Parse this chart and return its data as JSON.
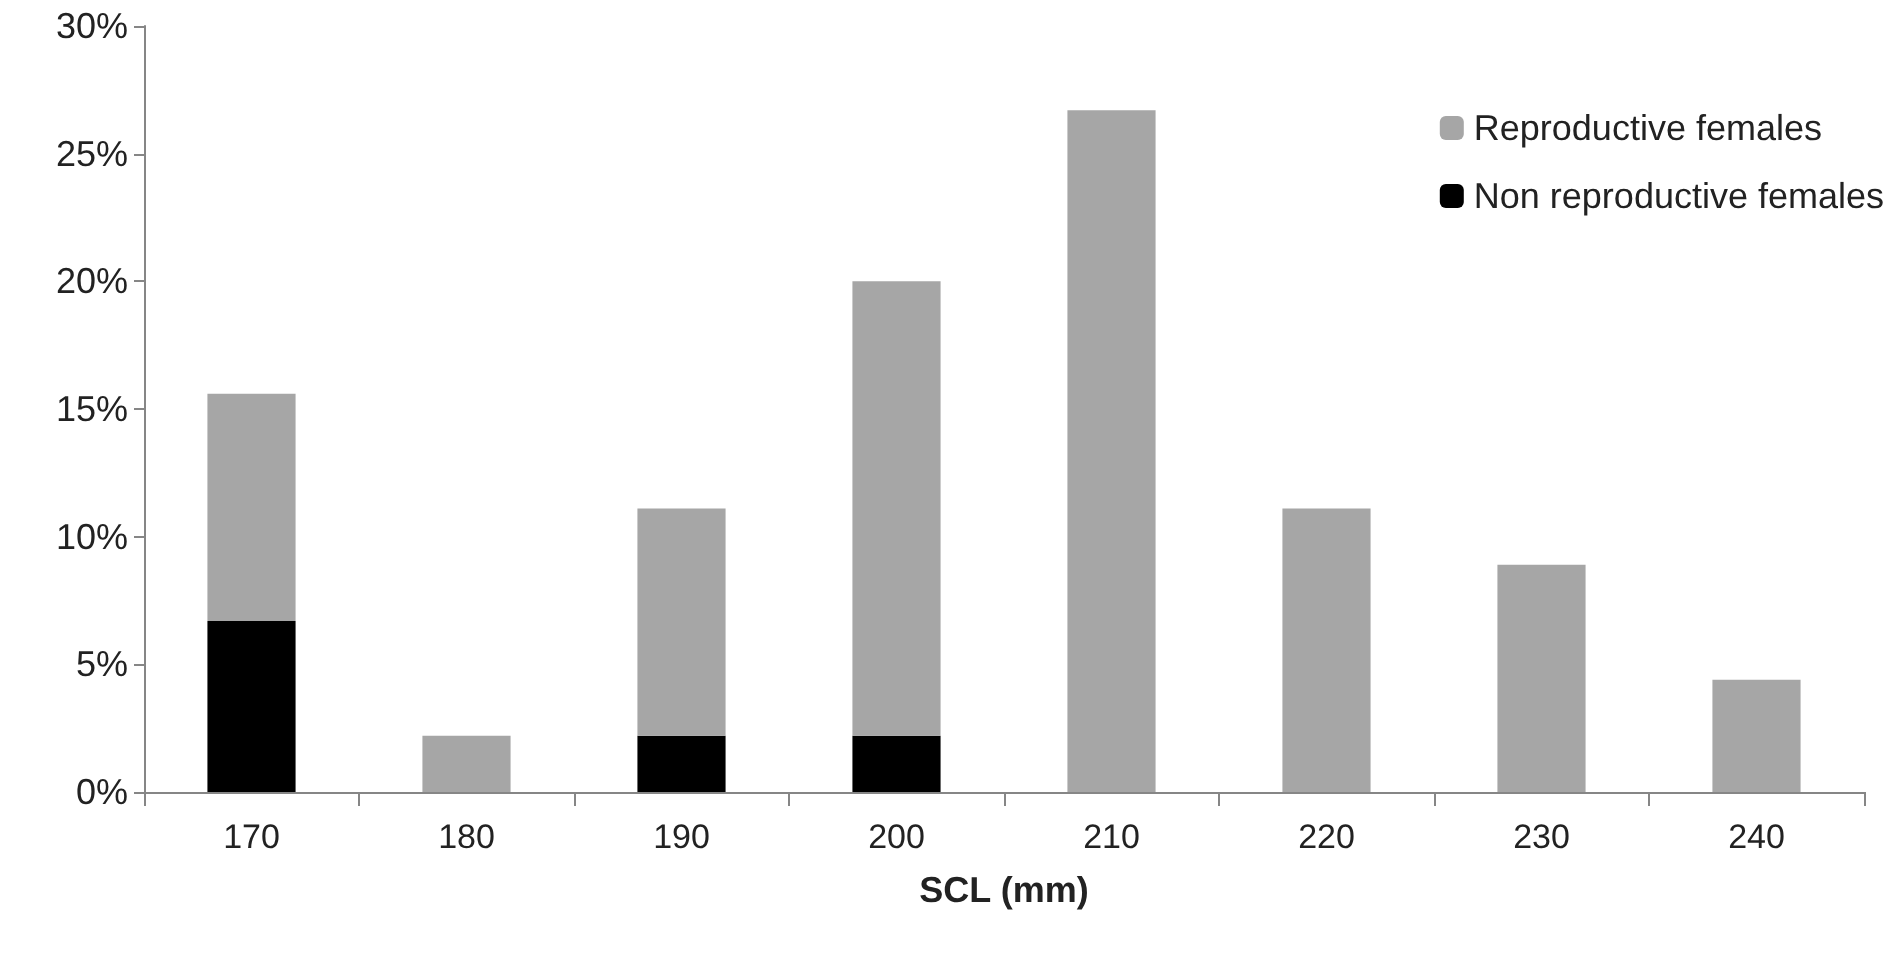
{
  "chart_data": {
    "type": "bar",
    "xlabel": "SCL (mm)",
    "categories": [
      "170",
      "180",
      "190",
      "200",
      "210",
      "220",
      "230",
      "240"
    ],
    "stacked": true,
    "series": [
      {
        "name": "Non reproductive females",
        "color": "#000000",
        "values": [
          6.7,
          null,
          2.2,
          2.2,
          null,
          null,
          null,
          null
        ]
      },
      {
        "name": "Reproductive females",
        "color": "#a6a6a6",
        "values": [
          8.9,
          2.2,
          8.9,
          17.8,
          26.7,
          11.1,
          8.9,
          4.4
        ]
      }
    ],
    "ylim": [
      0,
      30
    ],
    "yticks": [
      {
        "value": 0,
        "label": "0%"
      },
      {
        "value": 5,
        "label": "5%"
      },
      {
        "value": 10,
        "label": "10%"
      },
      {
        "value": 15,
        "label": "15%"
      },
      {
        "value": 20,
        "label": "20%"
      },
      {
        "value": 25,
        "label": "25%"
      },
      {
        "value": 30,
        "label": "30%"
      }
    ],
    "grid": false,
    "legend": "top right"
  }
}
